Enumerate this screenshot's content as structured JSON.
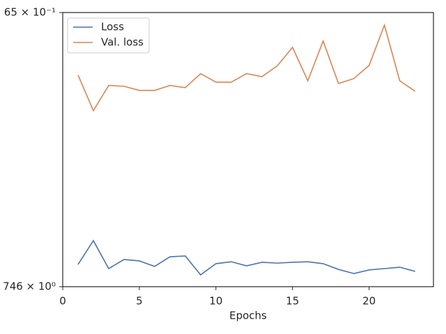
{
  "chart_data": {
    "type": "line",
    "xlabel": "Epochs",
    "x": [
      1,
      2,
      3,
      4,
      5,
      6,
      7,
      8,
      9,
      10,
      11,
      12,
      13,
      14,
      15,
      16,
      17,
      18,
      19,
      20,
      21,
      22,
      23
    ],
    "series": [
      {
        "name": "Loss",
        "color": "#4c72b0",
        "values": [
          0.081,
          0.168,
          0.066,
          0.099,
          0.094,
          0.074,
          0.109,
          0.112,
          0.043,
          0.084,
          0.091,
          0.076,
          0.089,
          0.086,
          0.089,
          0.091,
          0.084,
          0.063,
          0.048,
          0.061,
          0.066,
          0.071,
          0.056
        ]
      },
      {
        "name": "Val. loss",
        "color": "#dd8452",
        "values": [
          0.772,
          0.642,
          0.734,
          0.731,
          0.716,
          0.716,
          0.734,
          0.726,
          0.777,
          0.746,
          0.746,
          0.777,
          0.766,
          0.805,
          0.873,
          0.751,
          0.896,
          0.741,
          0.759,
          0.807,
          0.954,
          0.751,
          0.713
        ]
      }
    ],
    "xlim": [
      0,
      24.2
    ],
    "xticks": [
      0,
      5,
      10,
      15,
      20
    ],
    "ylim": [
      0,
      1
    ],
    "yticks": [
      {
        "value": 0,
        "label": "746 × 10⁰"
      },
      {
        "value": 1,
        "label": "65 × 10⁻¹"
      }
    ],
    "legend": "upper left",
    "grid": false
  }
}
